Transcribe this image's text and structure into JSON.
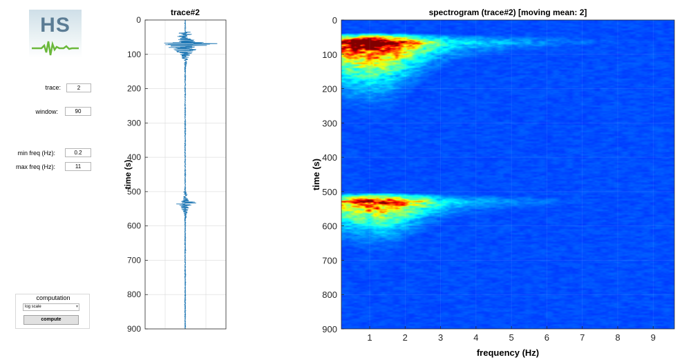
{
  "logo": {
    "text": "HS"
  },
  "controls": {
    "trace_label": "trace:",
    "trace_value": "2",
    "window_label": "window:",
    "window_value": "90",
    "min_freq_label": "min freq (Hz):",
    "min_freq_value": "0.2",
    "max_freq_label": "max freq (Hz):",
    "max_freq_value": "11"
  },
  "computation": {
    "title": "computation",
    "scale_selected": "log scale",
    "compute_label": "compute"
  },
  "trace_plot": {
    "title": "trace#2",
    "ylabel": "time (s)",
    "yticks": [
      "0",
      "100",
      "200",
      "300",
      "400",
      "500",
      "600",
      "700",
      "800",
      "900"
    ]
  },
  "spectrogram": {
    "title": "spectrogram (trace#2) [moving mean: 2]",
    "xlabel": "frequency (Hz)",
    "ylabel": "time (s)",
    "yticks": [
      "0",
      "100",
      "200",
      "300",
      "400",
      "500",
      "600",
      "700",
      "800",
      "900"
    ],
    "xticks": [
      "1",
      "2",
      "3",
      "4",
      "5",
      "6",
      "7",
      "8",
      "9"
    ]
  },
  "colors": {
    "trace": "#1f77b4",
    "spec_background": "#00008f",
    "grid": "#d9d9d9"
  },
  "chart_data": [
    {
      "type": "line",
      "title": "trace#2",
      "ylabel": "time (s)",
      "ylim": [
        0,
        900
      ],
      "events": [
        {
          "start_s": 35,
          "peak_s": 65,
          "end_s": 260
        },
        {
          "start_s": 500,
          "peak_s": 530,
          "end_s": 700
        }
      ]
    },
    {
      "type": "heatmap",
      "title": "spectrogram (trace#2) [moving mean: 2]",
      "xlabel": "frequency (Hz)",
      "ylabel": "time (s)",
      "xlim": [
        0.2,
        9.6
      ],
      "ylim": [
        0,
        900
      ],
      "events": [
        {
          "start_s": 35,
          "peak_s": 65,
          "peak_freq_hz": 1.0,
          "decay_end_s": 330
        },
        {
          "start_s": 500,
          "peak_s": 530,
          "peak_freq_hz": 1.2,
          "decay_end_s": 730
        }
      ]
    }
  ]
}
